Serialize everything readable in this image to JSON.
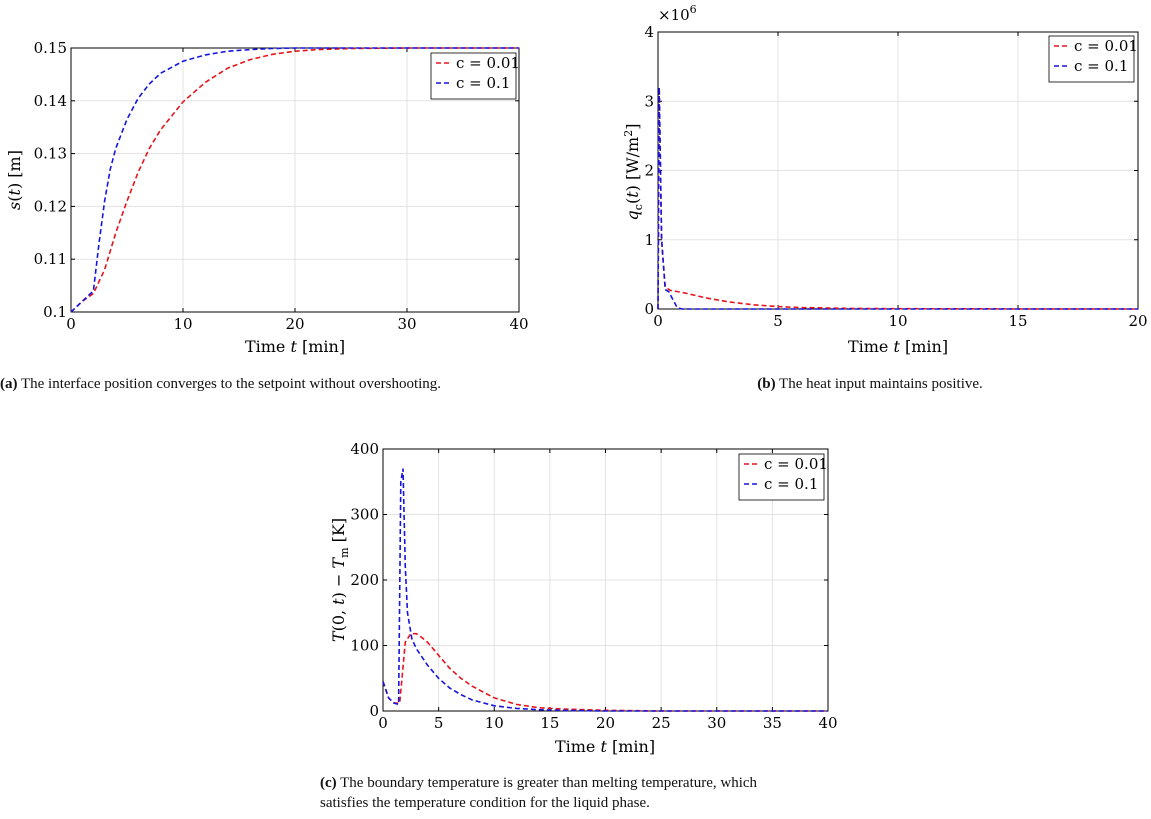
{
  "chart_data": [
    {
      "id": "a",
      "type": "line",
      "xlabel": "Time t [min]",
      "ylabel": "s(t) [m]",
      "xlim": [
        0,
        40
      ],
      "ylim": [
        0.1,
        0.15
      ],
      "xticks": [
        0,
        10,
        20,
        30,
        40
      ],
      "yticks": [
        0.1,
        0.11,
        0.12,
        0.13,
        0.14,
        0.15
      ],
      "xtick_labels": [
        "0",
        "10",
        "20",
        "30",
        "40"
      ],
      "ytick_labels": [
        "0.1",
        "0.11",
        "0.12",
        "0.13",
        "0.14",
        "0.15"
      ],
      "grid": true,
      "legend": "top-right",
      "series": [
        {
          "name": "c = 0.01",
          "color": "#e8141b",
          "x": [
            0,
            1,
            2,
            3,
            4,
            5,
            6,
            7,
            8,
            10,
            12,
            14,
            16,
            18,
            20,
            22,
            25,
            30,
            40
          ],
          "y": [
            0.1,
            0.102,
            0.1035,
            0.108,
            0.115,
            0.121,
            0.1265,
            0.131,
            0.1345,
            0.1398,
            0.1435,
            0.1462,
            0.1478,
            0.1488,
            0.1494,
            0.1497,
            0.1499,
            0.15,
            0.15
          ]
        },
        {
          "name": "c = 0.1",
          "color": "#1515e0",
          "x": [
            0,
            1,
            2,
            2.5,
            3,
            3.5,
            4,
            5,
            6,
            7,
            8,
            10,
            12,
            14,
            16,
            18,
            20,
            25,
            30,
            40
          ],
          "y": [
            0.1,
            0.102,
            0.104,
            0.113,
            0.121,
            0.127,
            0.131,
            0.1365,
            0.1405,
            0.1432,
            0.1452,
            0.1475,
            0.1487,
            0.1494,
            0.1497,
            0.1499,
            0.15,
            0.15,
            0.15,
            0.15
          ]
        }
      ]
    },
    {
      "id": "b",
      "type": "line",
      "xlabel": "Time t [min]",
      "ylabel": "q_c(t) [W/m^2]",
      "exponent_label": "×10^6",
      "xlim": [
        0,
        20
      ],
      "ylim": [
        0,
        4
      ],
      "xticks": [
        0,
        5,
        10,
        15,
        20
      ],
      "yticks": [
        0,
        1,
        2,
        3,
        4
      ],
      "xtick_labels": [
        "0",
        "5",
        "10",
        "15",
        "20"
      ],
      "ytick_labels": [
        "0",
        "1",
        "2",
        "3",
        "4"
      ],
      "grid": true,
      "legend": "top-right",
      "series": [
        {
          "name": "c = 0.01",
          "color": "#e8141b",
          "x": [
            0,
            0.05,
            0.15,
            0.3,
            0.5,
            1,
            1.5,
            2,
            3,
            4,
            5,
            6,
            8,
            10,
            15,
            20
          ],
          "y": [
            0,
            3.2,
            1.0,
            0.32,
            0.27,
            0.24,
            0.2,
            0.16,
            0.1,
            0.06,
            0.035,
            0.02,
            0.008,
            0.004,
            0.001,
            0
          ]
        },
        {
          "name": "c = 0.1",
          "color": "#1515e0",
          "x": [
            0,
            0.05,
            0.15,
            0.3,
            0.45,
            0.6,
            0.8,
            1,
            2,
            5,
            10,
            20
          ],
          "y": [
            0,
            3.2,
            1.0,
            0.28,
            0.25,
            0.15,
            0.02,
            0,
            0,
            0,
            0,
            0
          ]
        }
      ]
    },
    {
      "id": "c",
      "type": "line",
      "xlabel": "Time t [min]",
      "ylabel": "T(0,t) − T_m [K]",
      "xlim": [
        0,
        40
      ],
      "ylim": [
        0,
        400
      ],
      "xticks": [
        0,
        5,
        10,
        15,
        20,
        25,
        30,
        35,
        40
      ],
      "yticks": [
        0,
        100,
        200,
        300,
        400
      ],
      "xtick_labels": [
        "0",
        "5",
        "10",
        "15",
        "20",
        "25",
        "30",
        "35",
        "40"
      ],
      "ytick_labels": [
        "0",
        "100",
        "200",
        "300",
        "400"
      ],
      "grid": true,
      "legend": "top-right",
      "series": [
        {
          "name": "c = 0.01",
          "color": "#e8141b",
          "x": [
            0,
            0.5,
            1,
            1.5,
            2,
            2.5,
            3,
            3.5,
            4,
            5,
            6,
            7,
            8,
            10,
            12,
            14,
            16,
            20,
            25,
            30,
            40
          ],
          "y": [
            45,
            20,
            12,
            12,
            105,
            118,
            118,
            112,
            105,
            85,
            65,
            50,
            38,
            20,
            10,
            5,
            3,
            1,
            0,
            0,
            0
          ]
        },
        {
          "name": "c = 0.1",
          "color": "#1515e0",
          "x": [
            0,
            0.5,
            1,
            1.4,
            1.6,
            1.8,
            2,
            2.2,
            2.6,
            3,
            4,
            5,
            6,
            7,
            8,
            10,
            12,
            14,
            16,
            20,
            25,
            30,
            40
          ],
          "y": [
            45,
            20,
            12,
            10,
            350,
            370,
            220,
            150,
            110,
            95,
            70,
            50,
            35,
            25,
            17,
            8,
            4,
            2,
            1,
            0,
            0,
            0,
            0
          ]
        }
      ]
    }
  ],
  "captions": {
    "a": {
      "tag": "(a)",
      "text": " The interface position converges to the setpoint without overshooting."
    },
    "b": {
      "tag": "(b)",
      "text": " The heat input maintains positive."
    },
    "c": {
      "tag": "(c)",
      "text": " The boundary temperature is greater than melting temperature, which",
      "text2": "satisfies the temperature condition for the liquid phase."
    }
  }
}
